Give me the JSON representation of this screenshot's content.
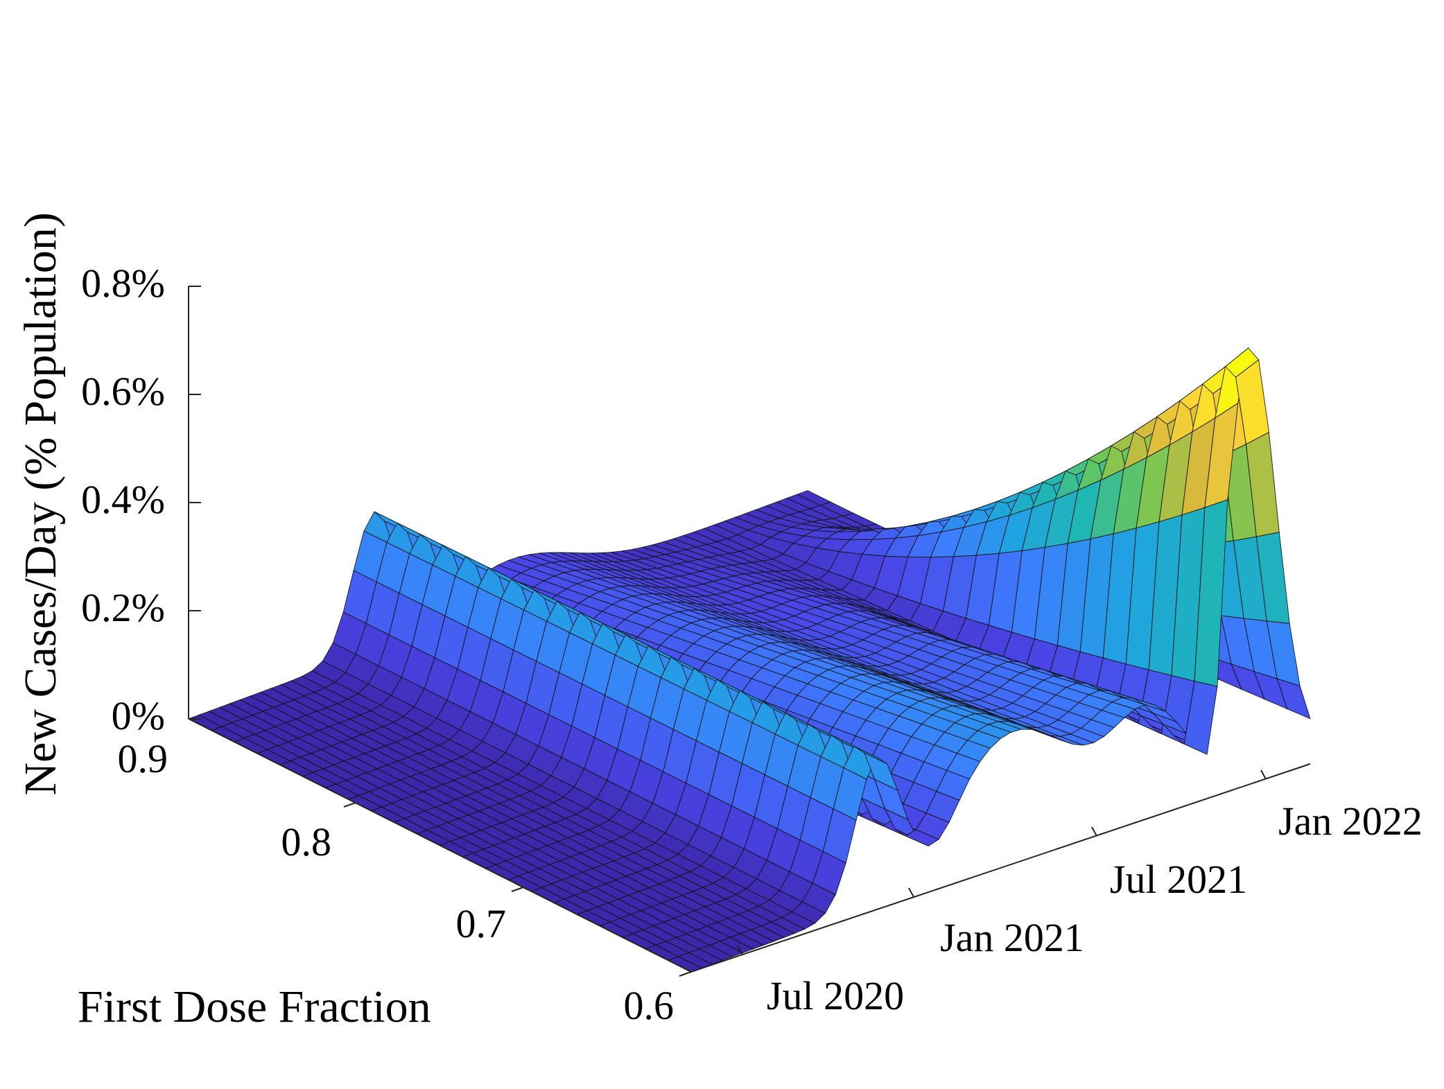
{
  "chart_data": {
    "type": "surface",
    "title": "",
    "xlabel": "",
    "ylabel": "First Dose Fraction",
    "zlabel": "New Cases/Day (% Population)",
    "x_ticks": [
      "Jul 2020",
      "Jan 2021",
      "Jul 2021",
      "Jan 2022"
    ],
    "y_ticks": [
      "0.6",
      "0.7",
      "0.8",
      "0.9"
    ],
    "z_ticks": [
      "0%",
      "0.2%",
      "0.4%",
      "0.6%",
      "0.8%"
    ],
    "xlim": [
      "2020-03-01",
      "2022-03-01"
    ],
    "ylim": [
      0.6,
      0.9
    ],
    "zlim": [
      0,
      0.8
    ],
    "colormap": [
      "#3e26a8",
      "#4a45e6",
      "#3d7dfe",
      "#1fa4e0",
      "#1fb7b0",
      "#6ec755",
      "#d7ba3b",
      "#fcd338",
      "#f9fb0e"
    ],
    "grid": "off",
    "series_description_points": {
      "first_dose_fraction_low": {
        "date": [
          "2020-03",
          "2020-06",
          "2020-09",
          "2020-11",
          "2021-01",
          "2021-04",
          "2021-07",
          "2021-09",
          "2021-10",
          "2021-11",
          "2021-12",
          "2022-01",
          "2022-02"
        ],
        "value": [
          0.0,
          0.05,
          0.2,
          0.08,
          0.12,
          0.2,
          0.18,
          0.05,
          0.02,
          0.55,
          0.62,
          0.4,
          0.05
        ]
      }
    }
  }
}
